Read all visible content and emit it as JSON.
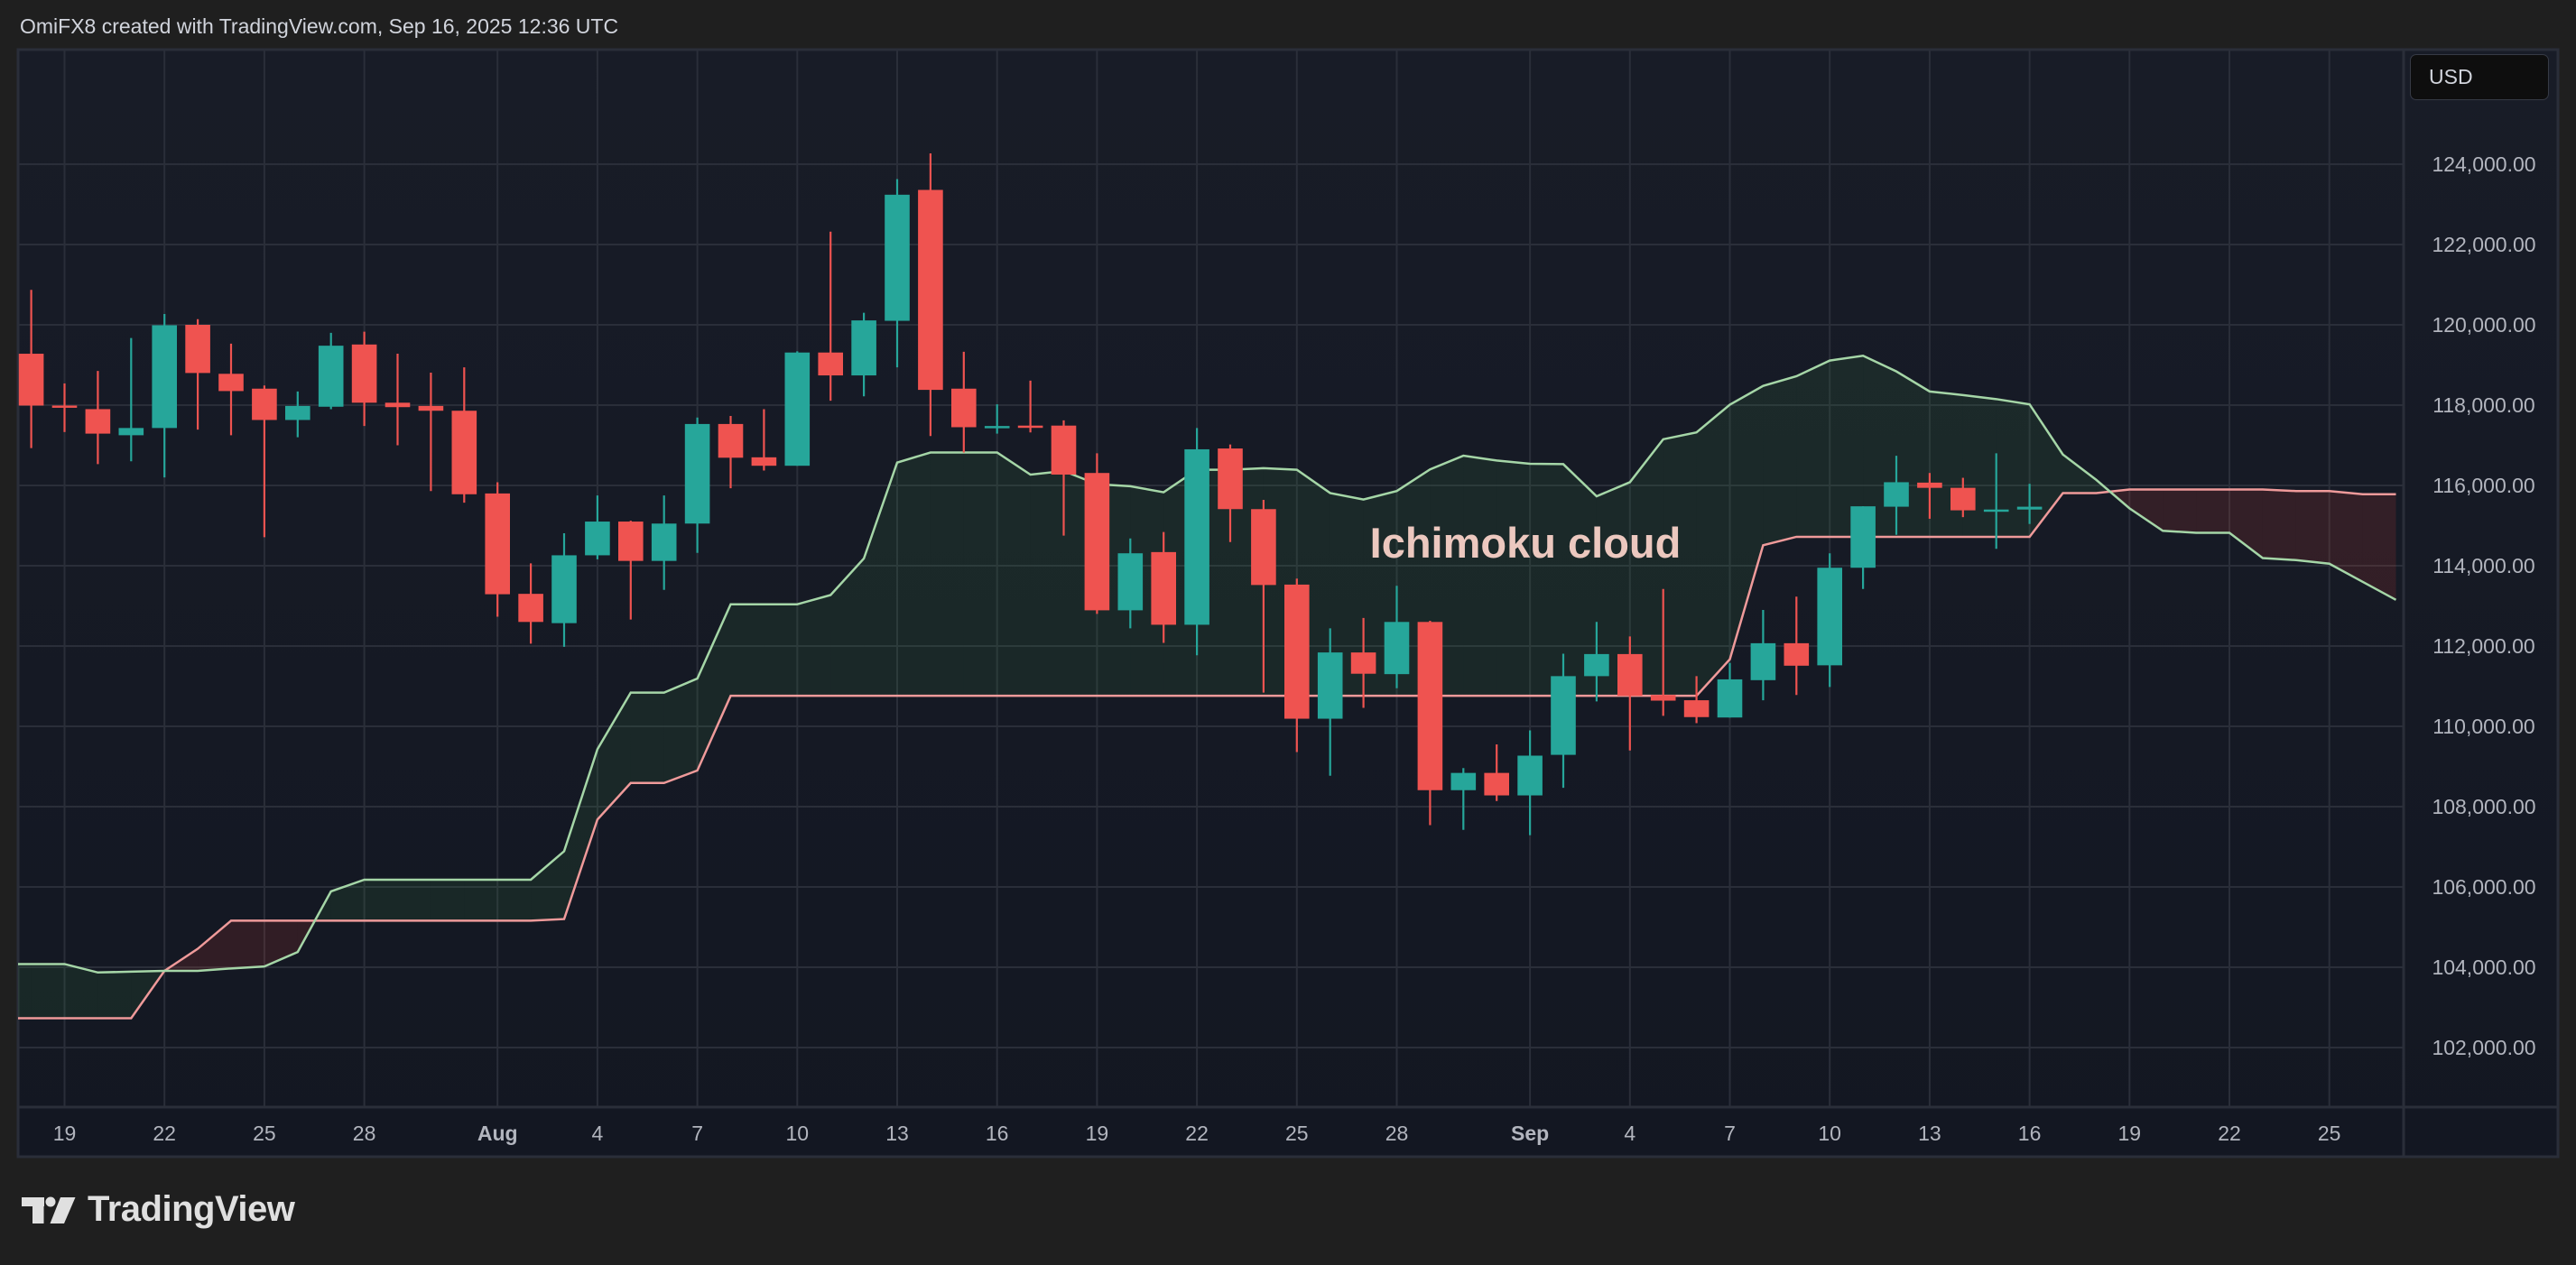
{
  "header": {
    "attribution": "OmiFX8 created with TradingView.com, Sep 16, 2025 12:36 UTC"
  },
  "price_scale": {
    "currency": "USD"
  },
  "footer": {
    "brand": "TradingView"
  },
  "colors": {
    "background": "#1f1f1f",
    "pane": "#151924",
    "grid": "#2a2e39",
    "up": "#26a69a",
    "down": "#ef5350",
    "span_a": "#a5d6a7",
    "span_b": "#ef9a9a",
    "cloud_bull": "rgba(67,160,71,0.12)",
    "cloud_bear": "rgba(244,67,54,0.13)",
    "annotation": "#ecc8bf",
    "axis_text": "#b2b5be"
  },
  "chart_data": {
    "type": "candlestick",
    "title": "",
    "annotation": "Ichimoku cloud",
    "y_range": [
      100800,
      125900
    ],
    "y_ticks": [
      124000,
      122000,
      120000,
      118000,
      116000,
      114000,
      112000,
      110000,
      108000,
      106000,
      104000,
      102000
    ],
    "y_tick_labels": [
      "124,000.00",
      "122,000.00",
      "120,000.00",
      "118,000.00",
      "116,000.00",
      "114,000.00",
      "112,000.00",
      "110,000.00",
      "108,000.00",
      "106,000.00",
      "104,000.00",
      "102,000.00"
    ],
    "x_ticks": [
      {
        "date": "2025-07-19",
        "label": "19"
      },
      {
        "date": "2025-07-22",
        "label": "22"
      },
      {
        "date": "2025-07-25",
        "label": "25"
      },
      {
        "date": "2025-07-28",
        "label": "28"
      },
      {
        "date": "2025-08-01",
        "label": "Aug",
        "bold": true
      },
      {
        "date": "2025-08-04",
        "label": "4"
      },
      {
        "date": "2025-08-07",
        "label": "7"
      },
      {
        "date": "2025-08-10",
        "label": "10"
      },
      {
        "date": "2025-08-13",
        "label": "13"
      },
      {
        "date": "2025-08-16",
        "label": "16"
      },
      {
        "date": "2025-08-19",
        "label": "19"
      },
      {
        "date": "2025-08-22",
        "label": "22"
      },
      {
        "date": "2025-08-25",
        "label": "25"
      },
      {
        "date": "2025-08-28",
        "label": "28"
      },
      {
        "date": "2025-09-01",
        "label": "Sep",
        "bold": true
      },
      {
        "date": "2025-09-04",
        "label": "4"
      },
      {
        "date": "2025-09-07",
        "label": "7"
      },
      {
        "date": "2025-09-10",
        "label": "10"
      },
      {
        "date": "2025-09-13",
        "label": "13"
      },
      {
        "date": "2025-09-16",
        "label": "16"
      },
      {
        "date": "2025-09-19",
        "label": "19"
      },
      {
        "date": "2025-09-22",
        "label": "22"
      },
      {
        "date": "2025-09-25",
        "label": "25"
      }
    ],
    "grid": true,
    "candle_fields": [
      "date",
      "open",
      "high",
      "low",
      "close"
    ],
    "candles": [
      [
        "2025-07-18",
        119280,
        120870,
        116930,
        117990
      ],
      [
        "2025-07-19",
        117990,
        118540,
        117330,
        117950
      ],
      [
        "2025-07-20",
        117900,
        118850,
        116530,
        117290
      ],
      [
        "2025-07-21",
        117250,
        119670,
        116600,
        117430
      ],
      [
        "2025-07-22",
        117430,
        120270,
        116200,
        119990
      ],
      [
        "2025-07-23",
        120000,
        120140,
        117390,
        118800
      ],
      [
        "2025-07-24",
        118780,
        119530,
        117250,
        118350
      ],
      [
        "2025-07-25",
        118410,
        118490,
        114710,
        117630
      ],
      [
        "2025-07-26",
        117630,
        118340,
        117200,
        117980
      ],
      [
        "2025-07-27",
        117960,
        119800,
        117900,
        119480
      ],
      [
        "2025-07-28",
        119510,
        119830,
        117480,
        118060
      ],
      [
        "2025-07-29",
        118060,
        119280,
        117000,
        117950
      ],
      [
        "2025-07-30",
        117980,
        118810,
        115860,
        117860
      ],
      [
        "2025-07-31",
        117860,
        118940,
        115570,
        115780
      ],
      [
        "2025-08-01",
        115800,
        116080,
        112730,
        113290
      ],
      [
        "2025-08-02",
        113300,
        114060,
        112060,
        112600
      ],
      [
        "2025-08-03",
        112570,
        114810,
        111980,
        114260
      ],
      [
        "2025-08-04",
        114260,
        115750,
        114160,
        115100
      ],
      [
        "2025-08-05",
        115100,
        115120,
        112660,
        114120
      ],
      [
        "2025-08-06",
        114120,
        115750,
        113400,
        115050
      ],
      [
        "2025-08-07",
        115050,
        117690,
        114320,
        117530
      ],
      [
        "2025-08-08",
        117530,
        117730,
        115930,
        116690
      ],
      [
        "2025-08-09",
        116700,
        117900,
        116370,
        116490
      ],
      [
        "2025-08-10",
        116490,
        119340,
        116490,
        119310
      ],
      [
        "2025-08-11",
        119310,
        122320,
        118110,
        118740
      ],
      [
        "2025-08-12",
        118740,
        120300,
        118220,
        120110
      ],
      [
        "2025-08-13",
        120100,
        123630,
        118940,
        123240
      ],
      [
        "2025-08-14",
        123360,
        124270,
        117230,
        118380
      ],
      [
        "2025-08-15",
        118410,
        119330,
        116820,
        117450
      ],
      [
        "2025-08-16",
        117450,
        118020,
        117290,
        117480
      ],
      [
        "2025-08-17",
        117490,
        118610,
        117320,
        117460
      ],
      [
        "2025-08-18",
        117490,
        117620,
        114750,
        116270
      ],
      [
        "2025-08-19",
        116310,
        116800,
        112800,
        112890
      ],
      [
        "2025-08-20",
        112890,
        114680,
        112440,
        114310
      ],
      [
        "2025-08-21",
        114340,
        114840,
        112080,
        112530
      ],
      [
        "2025-08-22",
        112530,
        117430,
        111770,
        116900
      ],
      [
        "2025-08-23",
        116920,
        117020,
        114590,
        115410
      ],
      [
        "2025-08-24",
        115410,
        115640,
        110840,
        113520
      ],
      [
        "2025-08-25",
        113530,
        113680,
        109360,
        110190
      ],
      [
        "2025-08-26",
        110190,
        112440,
        108770,
        111840
      ],
      [
        "2025-08-27",
        111840,
        112700,
        110460,
        111310
      ],
      [
        "2025-08-28",
        111300,
        113500,
        110950,
        112600
      ],
      [
        "2025-08-29",
        112600,
        112630,
        107540,
        108410
      ],
      [
        "2025-08-30",
        108410,
        108960,
        107420,
        108840
      ],
      [
        "2025-08-31",
        108840,
        109550,
        108140,
        108280
      ],
      [
        "2025-09-01",
        108280,
        109900,
        107290,
        109270
      ],
      [
        "2025-09-02",
        109290,
        111810,
        108470,
        111250
      ],
      [
        "2025-09-03",
        111250,
        112600,
        110620,
        111800
      ],
      [
        "2025-09-04",
        111800,
        112240,
        109400,
        110760
      ],
      [
        "2025-09-05",
        110780,
        113420,
        110260,
        110640
      ],
      [
        "2025-09-06",
        110650,
        111250,
        110080,
        110230
      ],
      [
        "2025-09-07",
        110220,
        111580,
        110220,
        111170
      ],
      [
        "2025-09-08",
        111150,
        112900,
        110650,
        112070
      ],
      [
        "2025-09-09",
        112070,
        113230,
        110780,
        111510
      ],
      [
        "2025-09-10",
        111520,
        114310,
        110980,
        113950
      ],
      [
        "2025-09-11",
        113950,
        115480,
        113420,
        115480
      ],
      [
        "2025-09-12",
        115470,
        116740,
        114770,
        116080
      ],
      [
        "2025-09-13",
        116070,
        116310,
        115170,
        115940
      ],
      [
        "2025-09-14",
        115940,
        116190,
        115210,
        115380
      ],
      [
        "2025-09-15",
        115380,
        116800,
        114420,
        115400
      ],
      [
        "2025-09-16",
        115400,
        116040,
        115040,
        115470
      ]
    ],
    "cloud_fields": [
      "date",
      "span_a",
      "span_b"
    ],
    "cloud": [
      [
        "2025-07-17",
        104080,
        102730
      ],
      [
        "2025-07-18",
        104080,
        102730
      ],
      [
        "2025-07-19",
        104080,
        102730
      ],
      [
        "2025-07-20",
        103870,
        102730
      ],
      [
        "2025-07-21",
        103890,
        102730
      ],
      [
        "2025-07-22",
        103910,
        103910
      ],
      [
        "2025-07-23",
        103910,
        104460
      ],
      [
        "2025-07-24",
        103970,
        105160
      ],
      [
        "2025-07-25",
        104020,
        105160
      ],
      [
        "2025-07-26",
        104380,
        105160
      ],
      [
        "2025-07-27",
        105890,
        105160
      ],
      [
        "2025-07-28",
        106180,
        105160
      ],
      [
        "2025-07-29",
        106180,
        105160
      ],
      [
        "2025-07-30",
        106180,
        105160
      ],
      [
        "2025-07-31",
        106180,
        105160
      ],
      [
        "2025-08-01",
        106180,
        105160
      ],
      [
        "2025-08-02",
        106180,
        105160
      ],
      [
        "2025-08-03",
        106890,
        105200
      ],
      [
        "2025-08-04",
        109430,
        107680
      ],
      [
        "2025-08-05",
        110840,
        108590
      ],
      [
        "2025-08-06",
        110840,
        108590
      ],
      [
        "2025-08-07",
        111190,
        108900
      ],
      [
        "2025-08-08",
        113040,
        110760
      ],
      [
        "2025-08-09",
        113040,
        110760
      ],
      [
        "2025-08-10",
        113040,
        110760
      ],
      [
        "2025-08-11",
        113270,
        110760
      ],
      [
        "2025-08-12",
        114180,
        110760
      ],
      [
        "2025-08-13",
        116570,
        110760
      ],
      [
        "2025-08-14",
        116820,
        110760
      ],
      [
        "2025-08-15",
        116820,
        110760
      ],
      [
        "2025-08-16",
        116820,
        110760
      ],
      [
        "2025-08-17",
        116270,
        110760
      ],
      [
        "2025-08-18",
        116360,
        110760
      ],
      [
        "2025-08-19",
        116030,
        110760
      ],
      [
        "2025-08-20",
        115980,
        110760
      ],
      [
        "2025-08-21",
        115830,
        110760
      ],
      [
        "2025-08-22",
        116390,
        110760
      ],
      [
        "2025-08-23",
        116390,
        110760
      ],
      [
        "2025-08-24",
        116430,
        110760
      ],
      [
        "2025-08-25",
        116390,
        110760
      ],
      [
        "2025-08-26",
        115810,
        110760
      ],
      [
        "2025-08-27",
        115650,
        110760
      ],
      [
        "2025-08-28",
        115860,
        110760
      ],
      [
        "2025-08-29",
        116400,
        110760
      ],
      [
        "2025-08-30",
        116740,
        110760
      ],
      [
        "2025-08-31",
        116620,
        110760
      ],
      [
        "2025-09-01",
        116540,
        110760
      ],
      [
        "2025-09-02",
        116530,
        110760
      ],
      [
        "2025-09-03",
        115730,
        110760
      ],
      [
        "2025-09-04",
        116080,
        110760
      ],
      [
        "2025-09-05",
        117150,
        110760
      ],
      [
        "2025-09-06",
        117320,
        110760
      ],
      [
        "2025-09-07",
        118010,
        111670
      ],
      [
        "2025-09-08",
        118480,
        114510
      ],
      [
        "2025-09-09",
        118720,
        114720
      ],
      [
        "2025-09-10",
        119110,
        114720
      ],
      [
        "2025-09-11",
        119230,
        114720
      ],
      [
        "2025-09-12",
        118840,
        114720
      ],
      [
        "2025-09-13",
        118340,
        114720
      ],
      [
        "2025-09-14",
        118250,
        114720
      ],
      [
        "2025-09-15",
        118150,
        114720
      ],
      [
        "2025-09-16",
        118020,
        114720
      ],
      [
        "2025-09-17",
        116770,
        115810
      ],
      [
        "2025-09-18",
        116140,
        115810
      ],
      [
        "2025-09-19",
        115430,
        115900
      ],
      [
        "2025-09-20",
        114870,
        115900
      ],
      [
        "2025-09-21",
        114820,
        115900
      ],
      [
        "2025-09-22",
        114820,
        115900
      ],
      [
        "2025-09-23",
        114190,
        115900
      ],
      [
        "2025-09-24",
        114140,
        115860
      ],
      [
        "2025-09-25",
        114050,
        115860
      ],
      [
        "2025-09-26",
        113600,
        115780
      ],
      [
        "2025-09-27",
        113150,
        115780
      ]
    ]
  }
}
